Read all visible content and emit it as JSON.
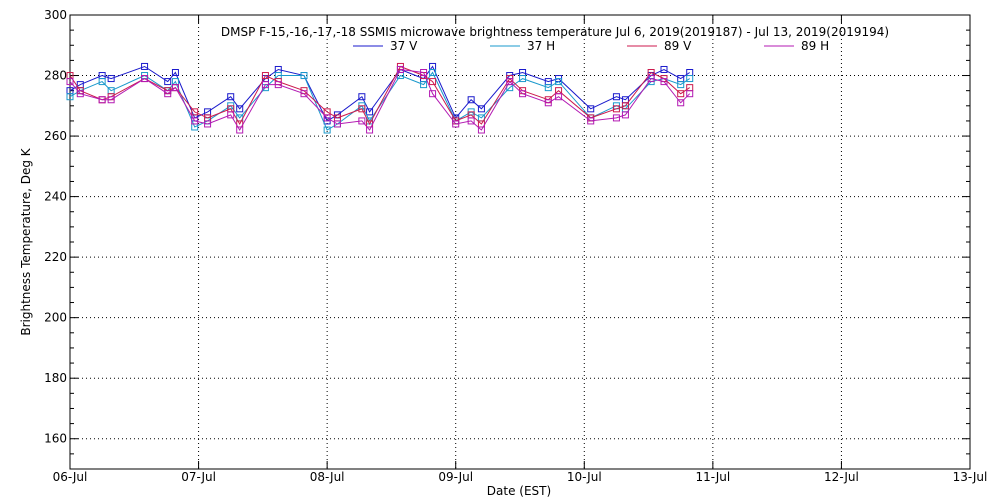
{
  "chart_data": {
    "type": "line",
    "title": "DMSP F-15,-16,-17,-18 SSMIS microwave brightness temperature Jul  6, 2019(2019187) - Jul 13, 2019(2019194)",
    "xlabel": "Date (EST)",
    "ylabel": "Brightness Temperature, Deg K",
    "ylim": [
      150,
      300
    ],
    "yticks": [
      160,
      180,
      200,
      220,
      240,
      260,
      280,
      300
    ],
    "xlim": [
      0,
      7
    ],
    "xticks": [
      {
        "value": 0,
        "label": "06-Jul"
      },
      {
        "value": 1,
        "label": "07-Jul"
      },
      {
        "value": 2,
        "label": "08-Jul"
      },
      {
        "value": 3,
        "label": "09-Jul"
      },
      {
        "value": 4,
        "label": "10-Jul"
      },
      {
        "value": 5,
        "label": "11-Jul"
      },
      {
        "value": 6,
        "label": "12-Jul"
      },
      {
        "value": 7,
        "label": "13-Jul"
      }
    ],
    "grid": true,
    "legend_position": "top",
    "series": [
      {
        "name": "37 V",
        "color": "#1a1acc",
        "x": [
          0.0,
          0.08,
          0.25,
          0.32,
          0.58,
          0.76,
          0.82,
          0.97,
          1.07,
          1.25,
          1.32,
          1.52,
          1.62,
          1.82,
          2.0,
          2.08,
          2.27,
          2.33,
          2.57,
          2.75,
          2.82,
          3.0,
          3.12,
          3.2,
          3.42,
          3.52,
          3.72,
          3.8,
          4.05,
          4.25,
          4.32,
          4.52,
          4.62,
          4.75,
          4.82
        ],
        "y": [
          275,
          277,
          280,
          279,
          283,
          278,
          281,
          266,
          268,
          273,
          269,
          279,
          282,
          280,
          265,
          267,
          273,
          268,
          282,
          279,
          283,
          266,
          272,
          269,
          280,
          281,
          278,
          279,
          269,
          273,
          272,
          280,
          282,
          279,
          281
        ]
      },
      {
        "name": "37 H",
        "color": "#1a99cc",
        "x": [
          0.0,
          0.08,
          0.25,
          0.32,
          0.58,
          0.76,
          0.82,
          0.97,
          1.07,
          1.25,
          1.32,
          1.52,
          1.62,
          1.82,
          2.0,
          2.08,
          2.27,
          2.33,
          2.57,
          2.75,
          2.82,
          3.0,
          3.12,
          3.2,
          3.42,
          3.52,
          3.72,
          3.8,
          4.05,
          4.25,
          4.32,
          4.52,
          4.62,
          4.75,
          4.82
        ],
        "y": [
          273,
          275,
          278,
          275,
          280,
          275,
          278,
          263,
          265,
          270,
          266,
          276,
          280,
          280,
          262,
          264,
          270,
          265,
          280,
          277,
          281,
          265,
          268,
          266,
          276,
          279,
          276,
          278,
          266,
          270,
          269,
          278,
          279,
          277,
          279
        ]
      },
      {
        "name": "89 V",
        "color": "#cc1a4d",
        "x": [
          0.0,
          0.08,
          0.25,
          0.32,
          0.58,
          0.76,
          0.82,
          0.97,
          1.07,
          1.25,
          1.32,
          1.52,
          1.62,
          1.82,
          2.0,
          2.08,
          2.27,
          2.33,
          2.57,
          2.75,
          2.82,
          3.0,
          3.12,
          3.2,
          3.42,
          3.52,
          3.72,
          3.8,
          4.05,
          4.25,
          4.32,
          4.52,
          4.62,
          4.75,
          4.82
        ],
        "y": [
          280,
          275,
          272,
          273,
          279,
          275,
          276,
          268,
          266,
          269,
          264,
          280,
          278,
          275,
          268,
          266,
          269,
          264,
          283,
          280,
          278,
          265,
          267,
          264,
          279,
          275,
          272,
          275,
          266,
          269,
          270,
          281,
          279,
          274,
          276
        ]
      },
      {
        "name": "89 H",
        "color": "#b31ab3",
        "x": [
          0.0,
          0.08,
          0.25,
          0.32,
          0.58,
          0.76,
          0.82,
          0.97,
          1.07,
          1.25,
          1.32,
          1.52,
          1.62,
          1.82,
          2.0,
          2.08,
          2.27,
          2.33,
          2.57,
          2.75,
          2.82,
          3.0,
          3.12,
          3.2,
          3.42,
          3.52,
          3.72,
          3.8,
          4.05,
          4.25,
          4.32,
          4.52,
          4.62,
          4.75,
          4.82
        ],
        "y": [
          278,
          274,
          272,
          272,
          279,
          274,
          276,
          265,
          264,
          267,
          262,
          277,
          277,
          274,
          266,
          264,
          265,
          262,
          282,
          281,
          274,
          264,
          265,
          262,
          278,
          274,
          271,
          273,
          265,
          266,
          267,
          279,
          278,
          271,
          274
        ]
      }
    ]
  }
}
